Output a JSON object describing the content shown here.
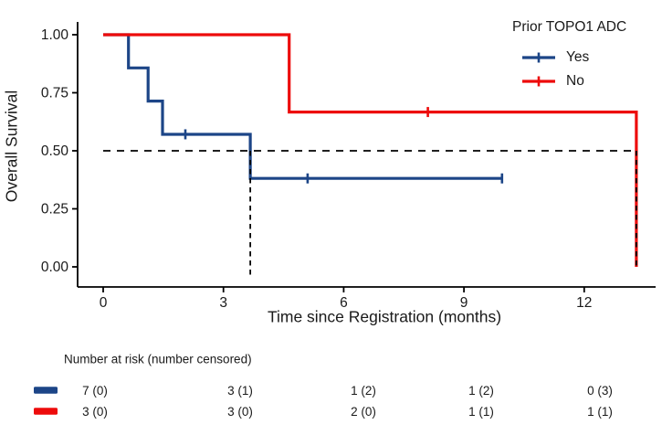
{
  "chart_data": {
    "type": "line",
    "subtype": "kaplan-meier-step",
    "xlabel": "Time since Registration (months)",
    "ylabel": "Overall Survival",
    "xlim": [
      -0.6,
      13.7
    ],
    "ylim": [
      0,
      1
    ],
    "grid": "off",
    "xticks": [
      {
        "label": "0",
        "value": 0
      },
      {
        "label": "3",
        "value": 3
      },
      {
        "label": "6",
        "value": 6
      },
      {
        "label": "9",
        "value": 9
      },
      {
        "label": "12",
        "value": 12
      }
    ],
    "yticks": [
      {
        "label": "0.00",
        "value": 0
      },
      {
        "label": "0.25",
        "value": 0.25
      },
      {
        "label": "0.50",
        "value": 0.5
      },
      {
        "label": "0.75",
        "value": 0.75
      },
      {
        "label": "1.00",
        "value": 1
      }
    ],
    "legend": {
      "title": "Prior TOPO1 ADC",
      "position": "top-right",
      "entries": [
        {
          "label": "Yes",
          "color": "#1c4587"
        },
        {
          "label": "No",
          "color": "#ed0b0b"
        }
      ]
    },
    "series": [
      {
        "name": "Yes",
        "color": "#1c4587",
        "steps": [
          [
            0,
            1.0
          ],
          [
            0.63,
            1.0
          ],
          [
            0.63,
            0.857
          ],
          [
            1.12,
            0.857
          ],
          [
            1.12,
            0.714
          ],
          [
            1.48,
            0.714
          ],
          [
            1.48,
            0.571
          ],
          [
            3.67,
            0.571
          ],
          [
            3.67,
            0.381
          ],
          [
            9.95,
            0.381
          ]
        ],
        "censor_marks": [
          [
            2.05,
            0.571
          ],
          [
            5.1,
            0.381
          ],
          [
            9.95,
            0.381
          ]
        ]
      },
      {
        "name": "No",
        "color": "#ed0b0b",
        "steps": [
          [
            0,
            1.0
          ],
          [
            4.64,
            1.0
          ],
          [
            4.64,
            0.667
          ],
          [
            13.3,
            0.667
          ],
          [
            13.3,
            0.0
          ]
        ],
        "censor_marks": [
          [
            8.1,
            0.667
          ]
        ]
      }
    ],
    "reference_lines": {
      "median_horizontal": {
        "y": 0.5,
        "x_start": 0,
        "x_end": 13.3
      },
      "median_verticals": [
        {
          "x": 3.67,
          "y_top": 0.5,
          "y_bottom": 0
        },
        {
          "x": 13.3,
          "y_top": 0.5,
          "y_bottom": 0
        }
      ]
    },
    "risk_table": {
      "title": "Number at risk (number censored)",
      "times": [
        0,
        3,
        6,
        9,
        12
      ],
      "rows": [
        {
          "name": "Yes",
          "color": "#1c4587",
          "values": [
            "7 (0)",
            "3 (1)",
            "1 (2)",
            "1 (2)",
            "0 (3)"
          ]
        },
        {
          "name": "No",
          "color": "#ed0b0b",
          "values": [
            "3 (0)",
            "3 (0)",
            "2 (0)",
            "1 (1)",
            "1 (1)"
          ]
        }
      ]
    }
  },
  "colors": {
    "yes_group": "#1c4587",
    "no_group": "#ed0b0b",
    "axis": "#000000",
    "reference_dash": "#000000",
    "background": "#ffffff"
  }
}
